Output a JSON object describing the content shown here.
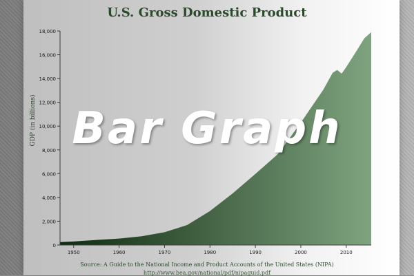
{
  "overlay_text": "Bar Graph",
  "colors": {
    "fill_dark": "#0f2a10",
    "fill_light": "#7fa37f",
    "title": "#2b4a2b",
    "axis": "#3a3a3a"
  },
  "chart_data": {
    "type": "area",
    "title": "U.S. Gross Domestic Product",
    "ylabel": "GDP (in billions)",
    "xlabel": "",
    "xlim": [
      1947,
      2015.5
    ],
    "ylim": [
      0,
      18000
    ],
    "x_ticks": [
      1950,
      1960,
      1970,
      1980,
      1990,
      2000,
      2010
    ],
    "y_ticks": [
      0,
      2000,
      4000,
      6000,
      8000,
      10000,
      12000,
      14000,
      16000,
      18000
    ],
    "y_tick_labels": [
      "0",
      "2,000",
      "4,000",
      "6,000",
      "8,000",
      "10,000",
      "12,000",
      "14,000",
      "16,000",
      "18,000"
    ],
    "grid": false,
    "x": [
      1947,
      1950,
      1955,
      1960,
      1965,
      1970,
      1975,
      1980,
      1985,
      1990,
      1995,
      2000,
      2005,
      2007,
      2008,
      2009,
      2010,
      2012,
      2014,
      2015.5
    ],
    "values": [
      243,
      300,
      425,
      540,
      740,
      1075,
      1685,
      2860,
      4340,
      5980,
      7660,
      10290,
      13090,
      14480,
      14720,
      14420,
      14960,
      16160,
      17390,
      17900
    ]
  },
  "source": {
    "text": "Source: A Guide to the National Income and Product Accounts of the United States (NIPA)",
    "link": "http://www.bea.gov/national/pdf/nipaguid.pdf"
  }
}
